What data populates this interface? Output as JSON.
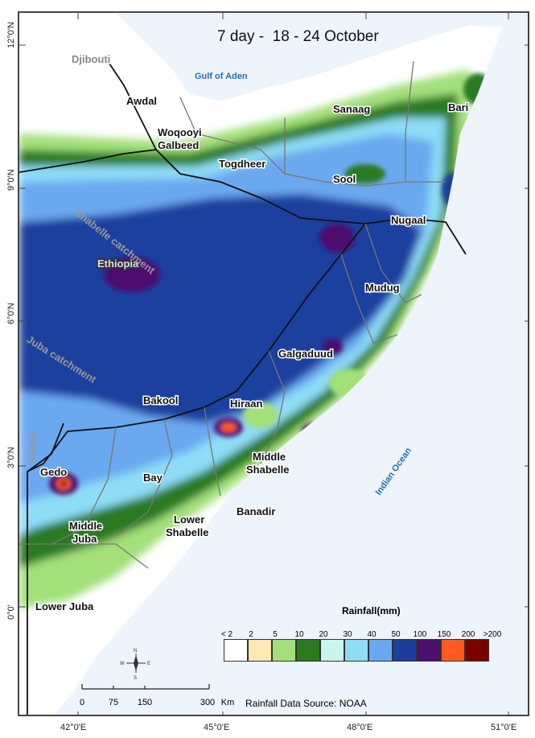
{
  "title": "7 day -  18 - 24 October",
  "sea_labels": {
    "gulf": "Gulf of Aden",
    "ocean": "Indian Ocean"
  },
  "country_labels": {
    "djibouti": "Djibouti",
    "ethiopia": "Ethiopia",
    "kenya": "Kenya"
  },
  "catchments": {
    "shabelle": "Shabelle catchment",
    "juba": "Juba catchment"
  },
  "regions": [
    "Awdal",
    "Woqooyi Galbeed",
    "Togdheer",
    "Sanaag",
    "Bari",
    "Sool",
    "Nugaal",
    "Mudug",
    "Galgaduud",
    "Hiraan",
    "Bakool",
    "Gedo",
    "Bay",
    "Middle Shabelle",
    "Banadir",
    "Lower Shabelle",
    "Middle Juba",
    "Lower Juba"
  ],
  "axes": {
    "lat_ticks": [
      "12°0'N",
      "9°0'N",
      "6°0'N",
      "3°0'N",
      "0°0'"
    ],
    "lon_ticks": [
      "42°0'E",
      "45°0'E",
      "48°0'E",
      "51°0'E"
    ]
  },
  "legend": {
    "title": "Rainfall(mm)",
    "labels": [
      "< 2",
      "2",
      "5",
      "10",
      "20",
      "30",
      "40",
      "50",
      "100",
      "150",
      "200",
      ">200"
    ],
    "colors": [
      "#ffffff",
      "#fde9b6",
      "#a3e07a",
      "#2b7a22",
      "#c8f5ec",
      "#8edcf5",
      "#6aa9f0",
      "#1c3f9e",
      "#4b0f6e",
      "#ff5a1f",
      "#7a0000"
    ]
  },
  "scale_bar": {
    "labels": [
      "0",
      "75",
      "150",
      "300"
    ],
    "unit": "Km"
  },
  "source": "Rainfall Data Source: NOAA"
}
